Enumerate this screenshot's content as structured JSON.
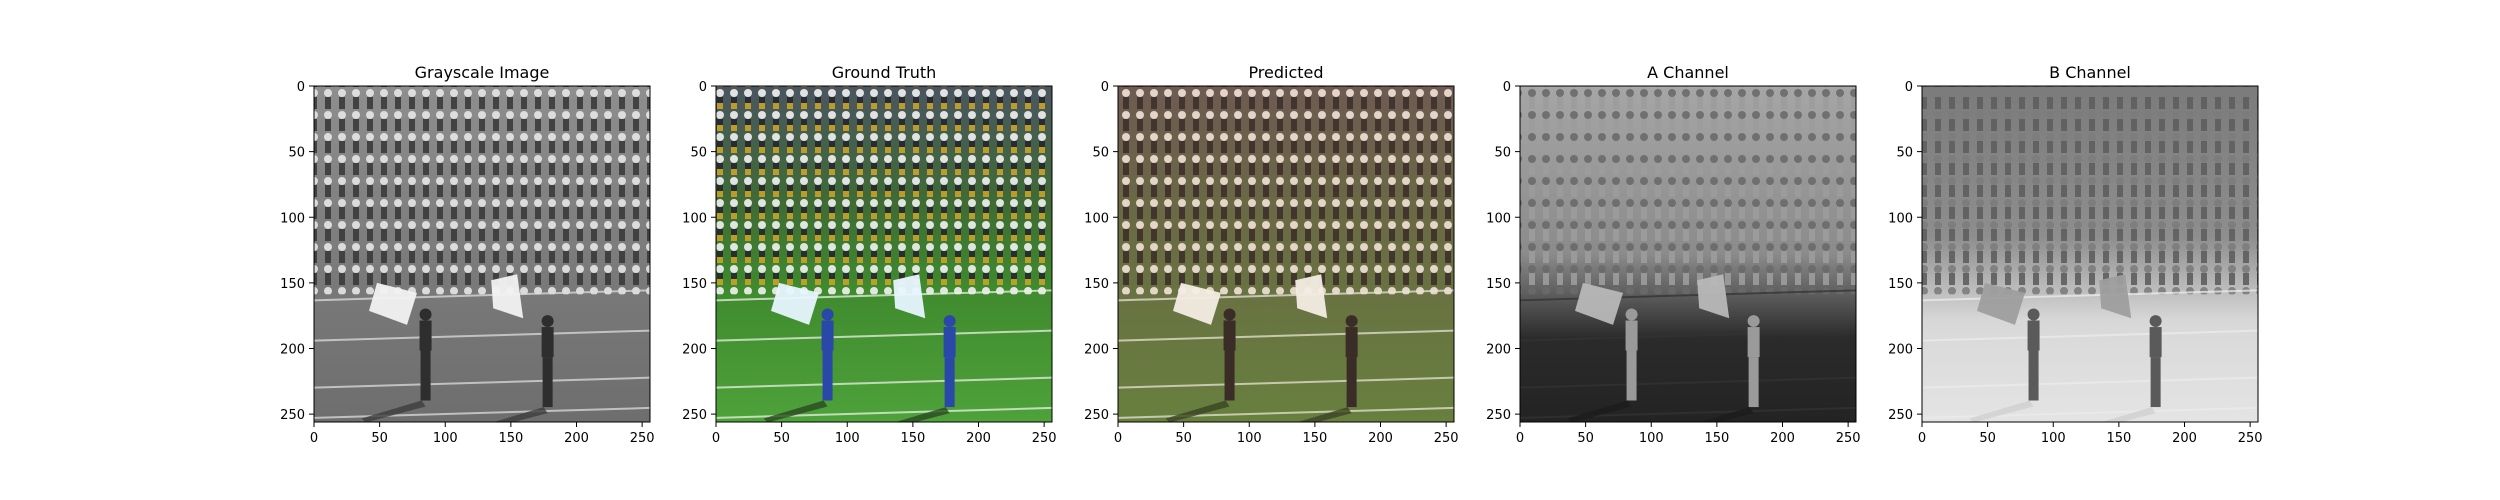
{
  "figure": {
    "panels": [
      {
        "title": "Grayscale Image",
        "kind": "grayscale"
      },
      {
        "title": "Ground Truth",
        "kind": "truth"
      },
      {
        "title": "Predicted",
        "kind": "predicted"
      },
      {
        "title": "A Channel",
        "kind": "a_channel"
      },
      {
        "title": "B Channel",
        "kind": "b_channel"
      }
    ],
    "x_ticks": [
      "0",
      "50",
      "100",
      "150",
      "200",
      "250"
    ],
    "y_ticks": [
      "0",
      "50",
      "100",
      "150",
      "200",
      "250"
    ],
    "image_extent": [
      0,
      256
    ]
  }
}
